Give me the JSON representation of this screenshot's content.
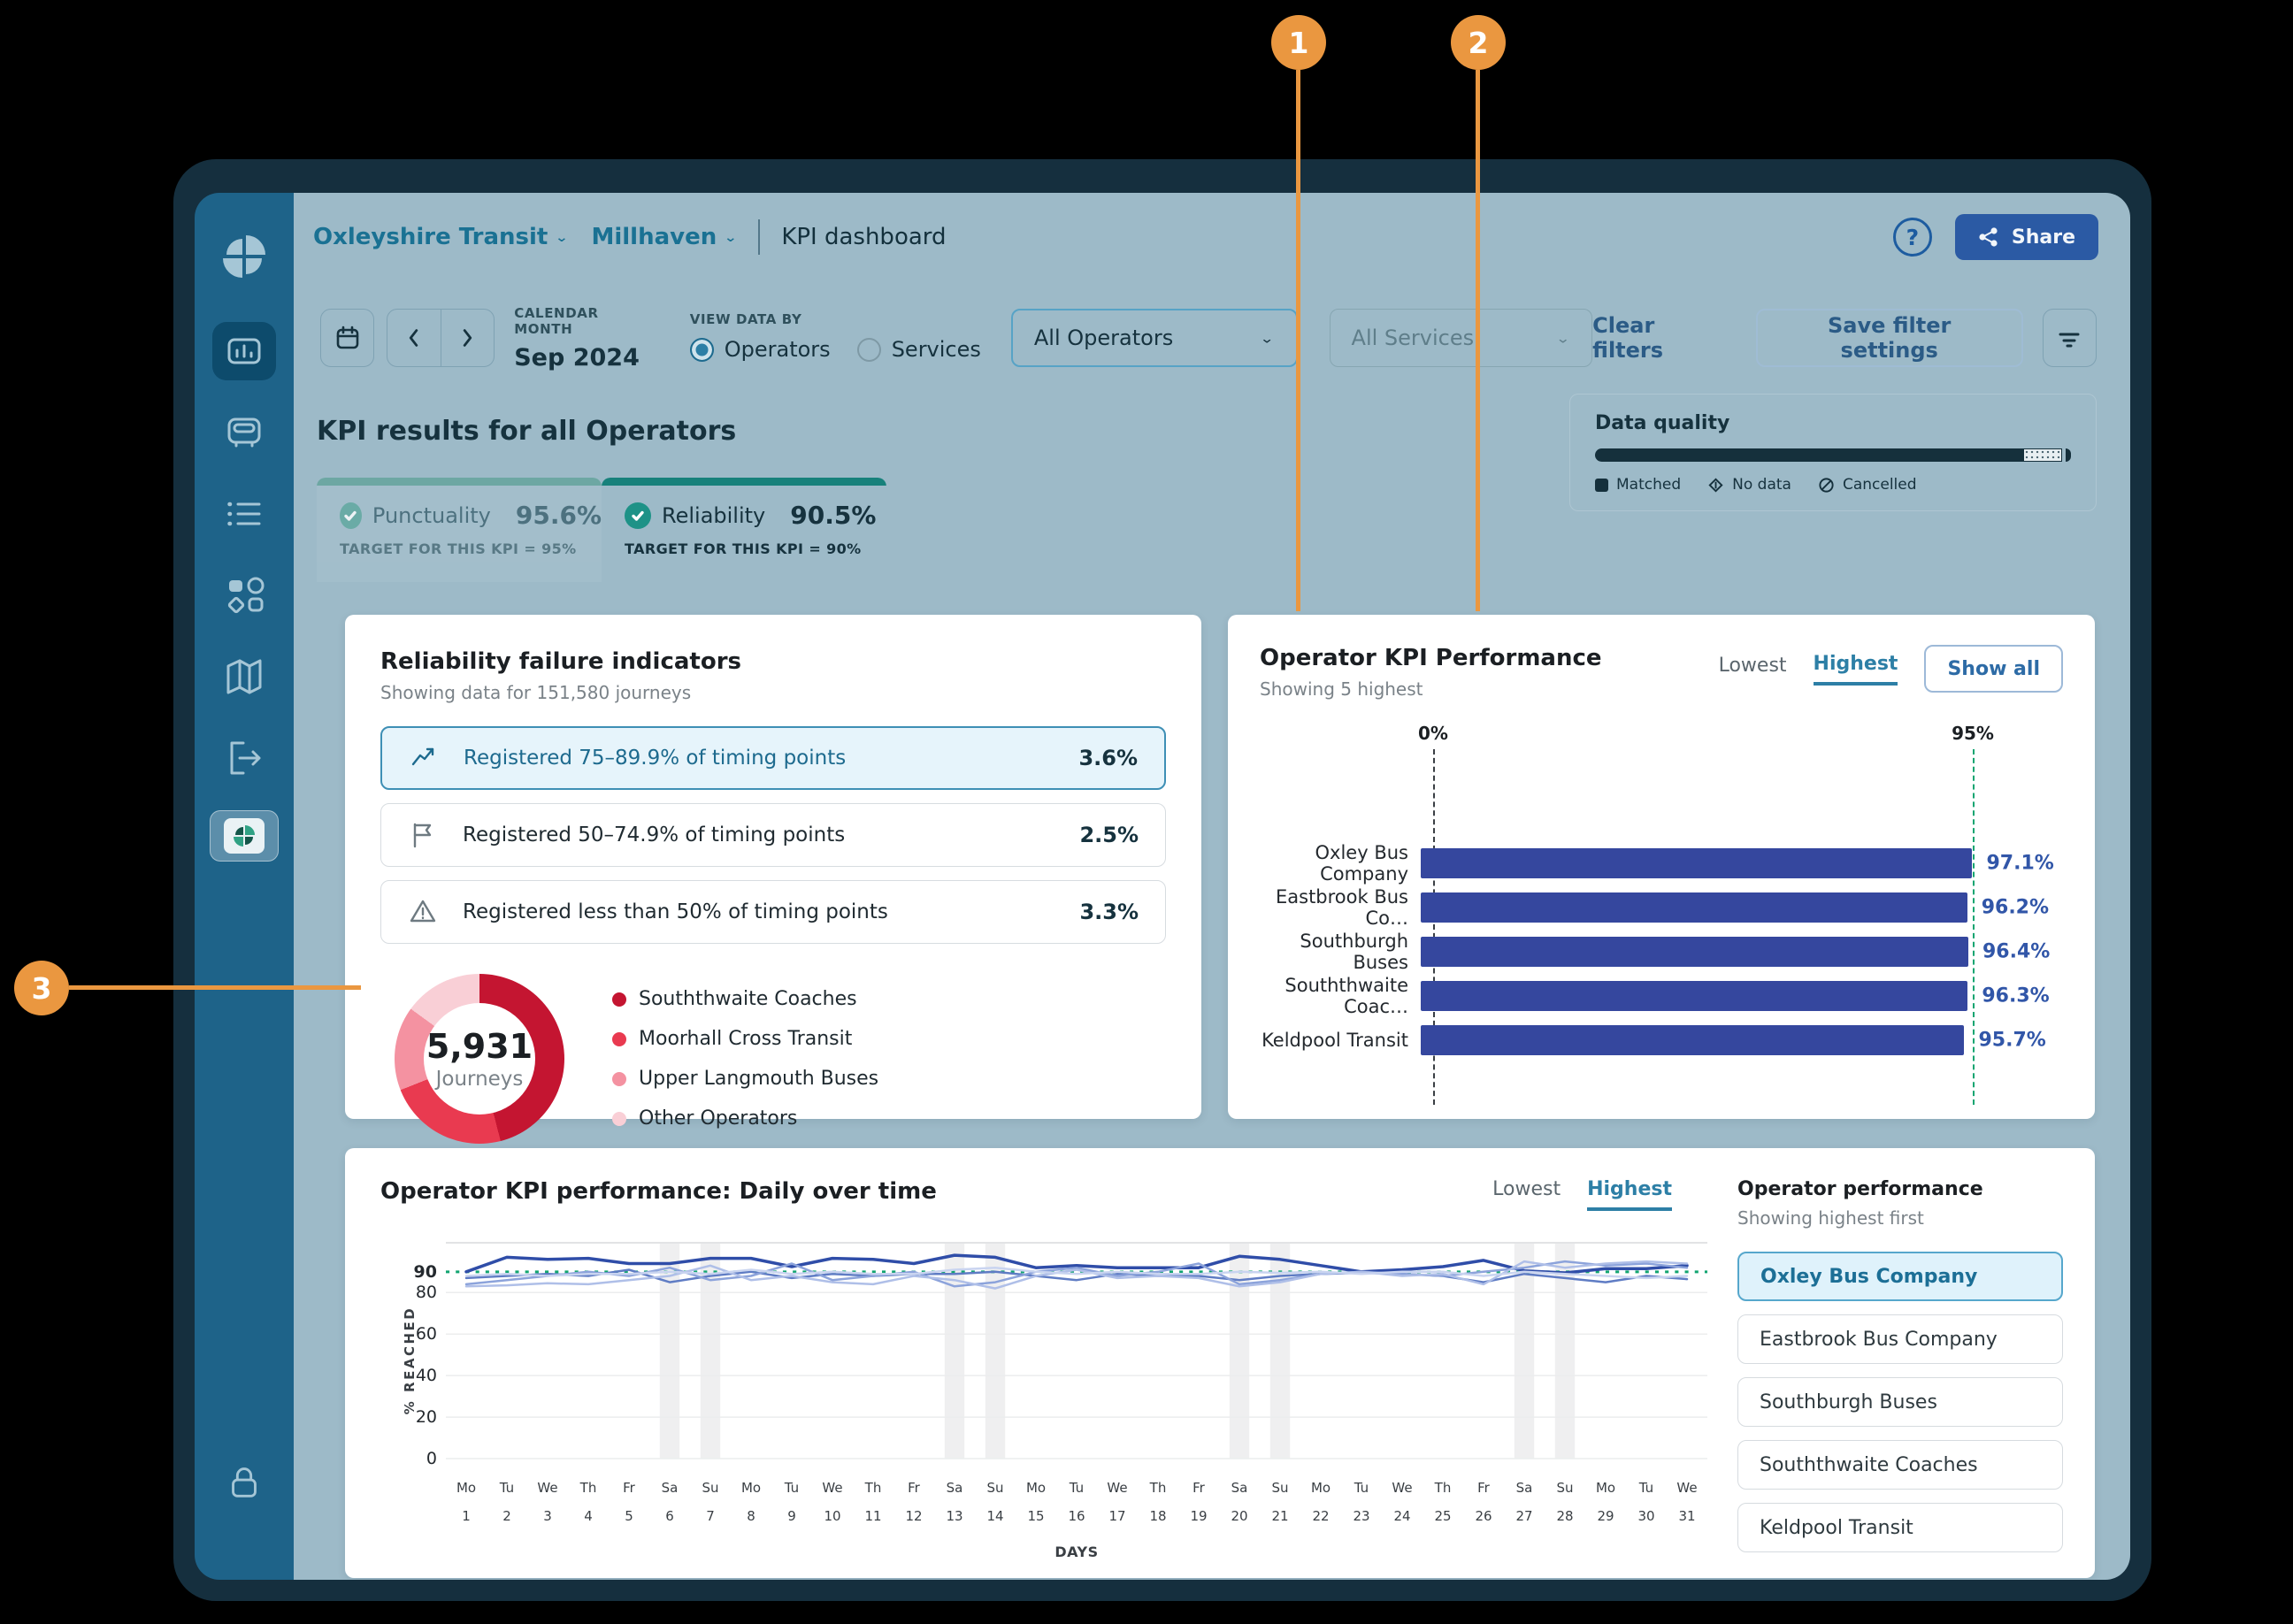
{
  "callouts": {
    "badges": [
      "1",
      "2",
      "3"
    ]
  },
  "header": {
    "breadcrumb1": "Oxleyshire Transit",
    "breadcrumb2": "Millhaven",
    "title": "KPI dashboard",
    "share_label": "Share",
    "help_label": "?"
  },
  "filter_bar": {
    "calendar_month_label": "CALENDAR MONTH",
    "month_value": "Sep 2024",
    "view_data_by_label": "VIEW DATA BY",
    "radio_operators": "Operators",
    "radio_services": "Services",
    "operators_select": "All Operators",
    "services_select": "All Services",
    "clear_filters": "Clear filters",
    "save_filter_settings": "Save filter settings"
  },
  "page_heading": "KPI results for all Operators",
  "data_quality": {
    "title": "Data quality",
    "matched_pct": 90,
    "nodata_pct": 8.2,
    "cancelled_pct": 1.1,
    "legend": [
      {
        "icon": "square-icon",
        "label": "Matched"
      },
      {
        "icon": "diamond-icon",
        "label": "No data"
      },
      {
        "icon": "cancelled-icon",
        "label": "Cancelled"
      }
    ]
  },
  "tabs": [
    {
      "label": "Punctuality",
      "value": "95.6%",
      "target": "TARGET FOR THIS KPI = 95%",
      "active": false
    },
    {
      "label": "Reliability",
      "value": "90.5%",
      "target": "TARGET FOR THIS KPI = 90%",
      "active": true
    }
  ],
  "reliability_card": {
    "title": "Reliability failure indicators",
    "subtitle": "Showing data for 151,580 journeys",
    "rows": [
      {
        "icon": "trend-up-icon",
        "label": "Registered 75–89.9% of timing points",
        "value": "3.6%",
        "selected": true
      },
      {
        "icon": "flag-icon",
        "label": "Registered 50–74.9% of timing points",
        "value": "2.5%",
        "selected": false
      },
      {
        "icon": "warning-icon",
        "label": "Registered less than 50% of timing points",
        "value": "3.3%",
        "selected": false
      }
    ]
  },
  "operator_card": {
    "title": "Operator KPI Performance",
    "subtitle": "Showing 5 highest",
    "lowest_label": "Lowest",
    "highest_label": "Highest",
    "show_all_label": "Show all"
  },
  "daily_card": {
    "title": "Operator KPI performance: Daily over time",
    "lowest_label": "Lowest",
    "highest_label": "Highest",
    "side_title": "Operator performance",
    "side_subtitle": "Showing highest first",
    "operators": [
      "Oxley Bus Company",
      "Eastbrook Bus Company",
      "Southburgh Buses",
      "Souththwaite Coaches",
      "Keldpool Transit"
    ],
    "selected_index": 0
  },
  "chart_data": [
    {
      "id": "failure-donut",
      "type": "pie",
      "center_value": "5,931",
      "center_label": "Journeys",
      "slices": [
        {
          "label": "Souththwaite Coaches",
          "value": 46,
          "color": "#C41531"
        },
        {
          "label": "Moorhall Cross Transit",
          "value": 23,
          "color": "#E93A50"
        },
        {
          "label": "Upper Langmouth Buses",
          "value": 16,
          "color": "#F492A1"
        },
        {
          "label": "Other Operators",
          "value": 15,
          "color": "#F9CFD6"
        }
      ]
    },
    {
      "id": "operator-bars",
      "type": "bar",
      "title": "Operator KPI Performance",
      "categories": [
        "Oxley Bus Company",
        "Eastbrook Bus Co…",
        "Southburgh Buses",
        "Souththwaite Coac…",
        "Keldpool Transit"
      ],
      "values": [
        97.1,
        96.2,
        96.4,
        96.3,
        95.7
      ],
      "value_labels": [
        "97.1%",
        "96.2%",
        "96.4%",
        "96.3%",
        "95.7%"
      ],
      "xlabel": "",
      "ylabel": "",
      "xlim": [
        0,
        105.5
      ],
      "axis": {
        "zero_label": "0%",
        "target_label": "95%",
        "target_value": 95
      },
      "bar_color": "#35479E"
    },
    {
      "id": "daily-lines",
      "type": "line",
      "title": "Operator KPI performance: Daily over time",
      "ylabel": "% REACHED",
      "xlabel": "DAYS",
      "yticks": [
        90,
        80,
        60,
        40,
        20,
        0
      ],
      "ylim": [
        0,
        104
      ],
      "target": 90,
      "grid": true,
      "x_weekdays": [
        "Mo",
        "Tu",
        "We",
        "Th",
        "Fr",
        "Sa",
        "Su",
        "Mo",
        "Tu",
        "We",
        "Th",
        "Fr",
        "Sa",
        "Su",
        "Mo",
        "Tu",
        "We",
        "Th",
        "Fr",
        "Sa",
        "Su",
        "Mo",
        "Tu",
        "We",
        "Th",
        "Fr",
        "Sa",
        "Su",
        "Mo",
        "Tu",
        "We"
      ],
      "x_days": [
        "1",
        "2",
        "3",
        "4",
        "5",
        "6",
        "7",
        "8",
        "9",
        "10",
        "11",
        "12",
        "13",
        "14",
        "15",
        "16",
        "17",
        "18",
        "19",
        "20",
        "21",
        "22",
        "23",
        "24",
        "25",
        "26",
        "27",
        "28",
        "29",
        "30",
        "31"
      ],
      "weekend_days": [
        6,
        7,
        13,
        14,
        20,
        21,
        27,
        28
      ],
      "series": [
        {
          "name": "Oxley Bus Company",
          "color": "#2F4DA8",
          "width": 3.5,
          "values": [
            90,
            97,
            96,
            96.5,
            94,
            94,
            96.5,
            96.5,
            92.5,
            96.5,
            96,
            94,
            98,
            97,
            92,
            93,
            92,
            92,
            92,
            97.5,
            96,
            93,
            90,
            91,
            92.5,
            95.5,
            90.5,
            89.5,
            91.5,
            91.5,
            93
          ]
        },
        {
          "name": "Eastbrook Bus Company",
          "color": "#5F7CC4",
          "width": 2.5,
          "values": [
            87,
            88,
            89,
            88,
            91,
            85,
            88,
            90,
            87,
            89,
            88,
            89,
            89,
            90,
            88,
            86,
            89,
            88,
            88,
            86,
            88,
            89,
            89.5,
            89,
            88,
            85,
            89,
            87,
            85,
            88,
            86.5
          ]
        },
        {
          "name": "Southburgh Buses",
          "color": "#8CA3DB",
          "width": 2.5,
          "values": [
            84,
            86,
            88,
            90,
            88,
            92,
            86,
            88,
            94,
            86,
            88,
            90,
            83,
            85,
            90,
            92,
            88,
            90,
            94,
            84,
            86,
            89,
            90,
            89,
            88,
            90,
            92,
            95,
            93,
            94,
            92
          ]
        },
        {
          "name": "Souththwaite Coaches",
          "color": "#AFBFE8",
          "width": 2.5,
          "values": [
            83,
            83.5,
            84.5,
            84,
            86,
            88,
            93,
            86,
            88,
            85,
            84,
            88,
            86,
            82,
            88,
            91,
            87,
            88,
            87,
            83,
            85,
            89,
            90,
            88,
            89,
            84,
            95,
            92,
            94,
            95,
            94
          ]
        },
        {
          "name": "Keldpool Transit",
          "color": "#C9D4F0",
          "width": 2.5,
          "values": [
            88,
            89,
            88,
            89,
            89,
            90,
            89,
            91,
            89,
            90,
            89,
            89,
            91,
            92,
            90,
            89,
            90,
            89,
            89,
            90,
            89.5,
            90,
            89,
            90,
            90,
            88,
            90,
            89,
            88,
            87,
            88
          ]
        }
      ]
    }
  ]
}
